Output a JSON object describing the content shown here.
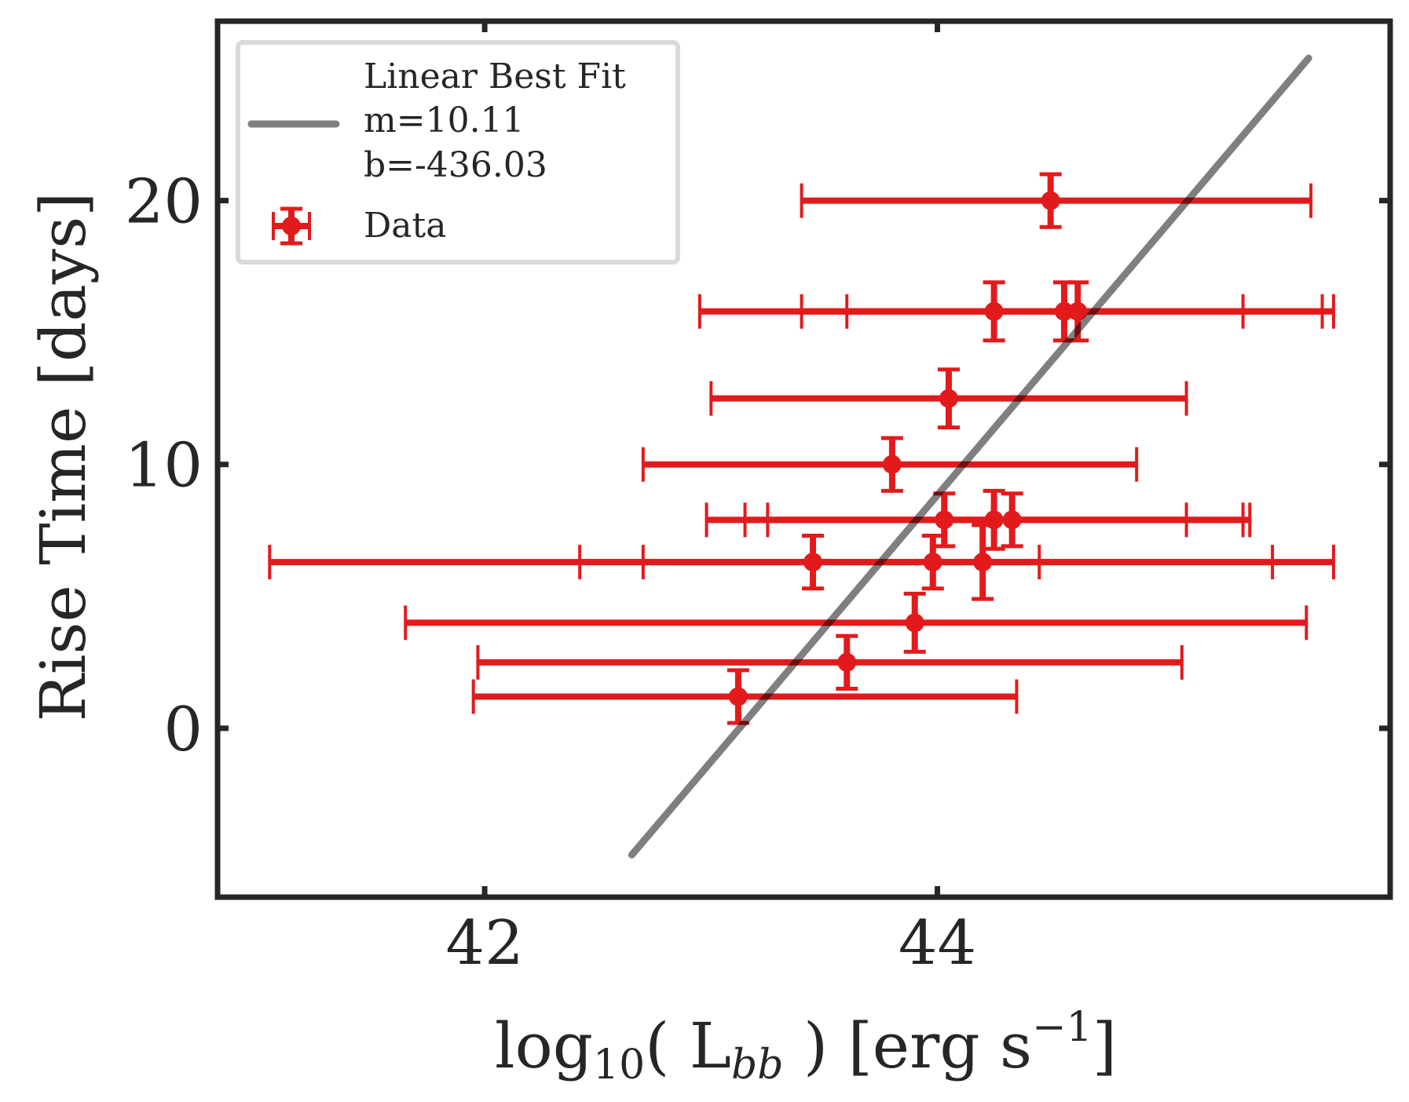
{
  "chart_data": {
    "type": "scatter",
    "xlabel": {
      "base": "log",
      "sub1": "10",
      "mid": "( L",
      "sub2": "bb",
      "tail": " ) [erg s",
      "sup": "−1",
      "close": "]"
    },
    "ylabel": "Rise Time [days]",
    "xlim": [
      40.82,
      46.0
    ],
    "ylim": [
      -6.4,
      26.8
    ],
    "xticks": [
      42,
      44
    ],
    "xtick_labels": [
      "42",
      "44"
    ],
    "yticks": [
      0,
      10,
      20
    ],
    "ytick_labels": [
      "0",
      "10",
      "20"
    ],
    "grid": false,
    "legend_position": "upper-left",
    "colors": {
      "data": "#e31a1c",
      "fit": "#7f7f7f",
      "axes": "#262626",
      "legend_border": "#d9d9d9"
    },
    "series": [
      {
        "name": "Linear Best Fit",
        "kind": "line",
        "x": [
          42.65,
          45.64
        ],
        "y": [
          -4.8,
          25.4
        ]
      },
      {
        "name": "Data",
        "kind": "errorbar",
        "points": [
          {
            "x": 44.5,
            "y": 20.0,
            "xlo": 43.4,
            "xhi": 45.65,
            "yerr": 1.0
          },
          {
            "x": 44.25,
            "y": 15.8,
            "xlo": 43.4,
            "xhi": 45.7,
            "yerr": 1.1
          },
          {
            "x": 44.56,
            "y": 15.8,
            "xlo": 42.95,
            "xhi": 45.35,
            "yerr": 1.1
          },
          {
            "x": 44.62,
            "y": 15.8,
            "xlo": 43.6,
            "xhi": 45.75,
            "yerr": 1.1
          },
          {
            "x": 44.05,
            "y": 12.5,
            "xlo": 43.0,
            "xhi": 45.1,
            "yerr": 1.1
          },
          {
            "x": 43.8,
            "y": 10.0,
            "xlo": 42.7,
            "xhi": 44.88,
            "yerr": 1.0
          },
          {
            "x": 44.03,
            "y": 7.9,
            "xlo": 42.98,
            "xhi": 45.1,
            "yerr": 1.0
          },
          {
            "x": 44.25,
            "y": 7.9,
            "xlo": 43.15,
            "xhi": 45.35,
            "yerr": 1.1
          },
          {
            "x": 44.33,
            "y": 7.9,
            "xlo": 43.25,
            "xhi": 45.38,
            "yerr": 1.0
          },
          {
            "x": 43.45,
            "y": 6.3,
            "xlo": 41.05,
            "xhi": 45.75,
            "yerr": 1.0
          },
          {
            "x": 43.98,
            "y": 6.3,
            "xlo": 42.42,
            "xhi": 45.48,
            "yerr": 1.0
          },
          {
            "x": 44.2,
            "y": 6.3,
            "xlo": 42.7,
            "xhi": 44.45,
            "yerr": 1.4
          },
          {
            "x": 43.9,
            "y": 4.0,
            "xlo": 41.65,
            "xhi": 45.63,
            "yerr": 1.1
          },
          {
            "x": 43.6,
            "y": 2.5,
            "xlo": 41.97,
            "xhi": 45.08,
            "yerr": 1.0
          },
          {
            "x": 43.12,
            "y": 1.2,
            "xlo": 41.95,
            "xhi": 44.35,
            "yerr": 1.0
          }
        ]
      }
    ],
    "legend": {
      "fit_lines": [
        "Linear Best Fit",
        "m=10.11",
        "b=-436.03"
      ],
      "data_label": "Data"
    }
  }
}
